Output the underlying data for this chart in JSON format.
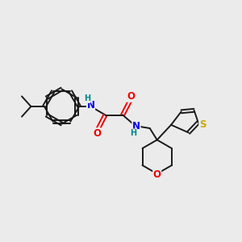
{
  "background_color": "#ebebeb",
  "bond_color": "#1a1a1a",
  "N_color": "#0000ee",
  "O_color": "#ee0000",
  "S_color": "#ccaa00",
  "H_color": "#008888",
  "figsize": [
    3.0,
    3.0
  ],
  "dpi": 100,
  "xlim": [
    0,
    10
  ],
  "ylim": [
    0,
    10
  ]
}
